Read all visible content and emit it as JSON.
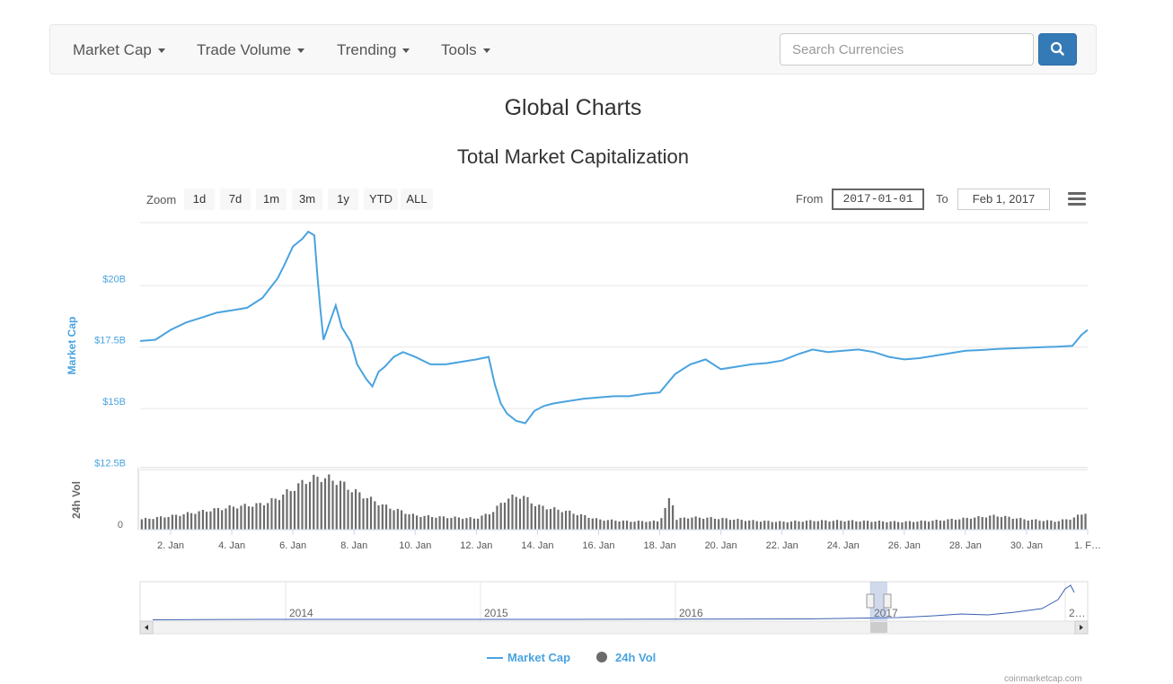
{
  "nav": {
    "items": [
      {
        "label": "Market Cap"
      },
      {
        "label": "Trade Volume"
      },
      {
        "label": "Trending"
      },
      {
        "label": "Tools"
      }
    ],
    "search_placeholder": "Search Currencies"
  },
  "page_title": "Global Charts",
  "range_selector": {
    "zoom_label": "Zoom",
    "buttons": [
      "1d",
      "7d",
      "1m",
      "3m",
      "1y",
      "YTD",
      "ALL"
    ],
    "from_label": "From",
    "from_value": "2017-01-01",
    "to_label": "To",
    "to_value": "Feb 1, 2017"
  },
  "colors": {
    "market_cap": "#4aa3df",
    "volume": "#6b6b6b",
    "navigator_line": "#3a5fb0",
    "search_button": "#337ab7"
  },
  "icons": {
    "search": "search-icon",
    "menu": "hamburger-menu-icon"
  },
  "credits": "coinmarketcap.com",
  "chart_data": {
    "type": "line",
    "title": "Total Market Capitalization",
    "x_range": [
      "2017-01-01",
      "2017-02-01"
    ],
    "x_ticks": [
      "2. Jan",
      "4. Jan",
      "6. Jan",
      "8. Jan",
      "10. Jan",
      "12. Jan",
      "14. Jan",
      "16. Jan",
      "18. Jan",
      "20. Jan",
      "22. Jan",
      "24. Jan",
      "26. Jan",
      "28. Jan",
      "30. Jan",
      "1. F…"
    ],
    "y_axis": {
      "label": "Market Cap",
      "ticks": [
        "$12.5B",
        "$15B",
        "$17.5B",
        "$20B"
      ],
      "tick_values": [
        12.5,
        15,
        17.5,
        20
      ],
      "min": 12.5,
      "max": 22.5,
      "unit": "B USD"
    },
    "volume_axis": {
      "label": "24h Vol",
      "ticks": [
        "0"
      ]
    },
    "series": [
      {
        "name": "Market Cap",
        "points": [
          [
            0,
            17.75
          ],
          [
            0.5,
            17.8
          ],
          [
            1,
            18.2
          ],
          [
            1.5,
            18.5
          ],
          [
            2,
            18.7
          ],
          [
            2.5,
            18.9
          ],
          [
            3,
            19.0
          ],
          [
            3.5,
            19.1
          ],
          [
            4,
            19.5
          ],
          [
            4.5,
            20.3
          ],
          [
            4.7,
            20.8
          ],
          [
            5.0,
            21.6
          ],
          [
            5.3,
            21.9
          ],
          [
            5.5,
            22.2
          ],
          [
            5.7,
            22.05
          ],
          [
            5.8,
            20.4
          ],
          [
            5.9,
            19.0
          ],
          [
            6.0,
            17.8
          ],
          [
            6.2,
            18.5
          ],
          [
            6.4,
            19.2
          ],
          [
            6.6,
            18.3
          ],
          [
            6.9,
            17.7
          ],
          [
            7.1,
            16.8
          ],
          [
            7.4,
            16.2
          ],
          [
            7.6,
            15.9
          ],
          [
            7.8,
            16.5
          ],
          [
            8.0,
            16.7
          ],
          [
            8.3,
            17.1
          ],
          [
            8.6,
            17.3
          ],
          [
            9.0,
            17.1
          ],
          [
            9.5,
            16.8
          ],
          [
            10.0,
            16.8
          ],
          [
            10.5,
            16.9
          ],
          [
            11.0,
            17.0
          ],
          [
            11.4,
            17.1
          ],
          [
            11.6,
            16.0
          ],
          [
            11.8,
            15.2
          ],
          [
            12.0,
            14.8
          ],
          [
            12.3,
            14.5
          ],
          [
            12.6,
            14.4
          ],
          [
            12.9,
            14.9
          ],
          [
            13.2,
            15.1
          ],
          [
            13.5,
            15.2
          ],
          [
            14.0,
            15.3
          ],
          [
            14.5,
            15.4
          ],
          [
            15.0,
            15.45
          ],
          [
            15.5,
            15.5
          ],
          [
            16.0,
            15.5
          ],
          [
            16.5,
            15.6
          ],
          [
            17.0,
            15.65
          ],
          [
            17.5,
            16.4
          ],
          [
            18.0,
            16.8
          ],
          [
            18.5,
            17.0
          ],
          [
            19.0,
            16.6
          ],
          [
            19.5,
            16.7
          ],
          [
            20.0,
            16.8
          ],
          [
            20.5,
            16.85
          ],
          [
            21.0,
            16.95
          ],
          [
            21.5,
            17.2
          ],
          [
            22.0,
            17.4
          ],
          [
            22.5,
            17.3
          ],
          [
            23.0,
            17.35
          ],
          [
            23.5,
            17.4
          ],
          [
            24.0,
            17.3
          ],
          [
            24.5,
            17.1
          ],
          [
            25.0,
            17.0
          ],
          [
            25.5,
            17.05
          ],
          [
            26.0,
            17.15
          ],
          [
            26.5,
            17.25
          ],
          [
            27.0,
            17.35
          ],
          [
            27.5,
            17.38
          ],
          [
            28.0,
            17.42
          ],
          [
            28.5,
            17.45
          ],
          [
            29.0,
            17.47
          ],
          [
            29.5,
            17.5
          ],
          [
            30.0,
            17.52
          ],
          [
            30.5,
            17.55
          ],
          [
            30.8,
            18.0
          ],
          [
            31.0,
            18.2
          ]
        ]
      },
      {
        "name": "24h Vol",
        "relative_levels": [
          [
            0,
            0.18
          ],
          [
            1,
            0.24
          ],
          [
            2,
            0.32
          ],
          [
            3,
            0.4
          ],
          [
            4,
            0.45
          ],
          [
            4.5,
            0.55
          ],
          [
            5,
            0.72
          ],
          [
            5.5,
            0.88
          ],
          [
            6,
            0.92
          ],
          [
            6.5,
            0.85
          ],
          [
            7,
            0.68
          ],
          [
            8,
            0.42
          ],
          [
            9,
            0.25
          ],
          [
            10,
            0.22
          ],
          [
            11,
            0.2
          ],
          [
            11.5,
            0.3
          ],
          [
            12,
            0.55
          ],
          [
            12.5,
            0.6
          ],
          [
            13,
            0.42
          ],
          [
            14,
            0.32
          ],
          [
            15,
            0.18
          ],
          [
            16,
            0.15
          ],
          [
            17,
            0.15
          ],
          [
            17.4,
            0.62
          ],
          [
            17.5,
            0.18
          ],
          [
            18,
            0.22
          ],
          [
            19,
            0.2
          ],
          [
            20,
            0.16
          ],
          [
            21,
            0.14
          ],
          [
            22,
            0.16
          ],
          [
            23,
            0.16
          ],
          [
            24,
            0.15
          ],
          [
            25,
            0.14
          ],
          [
            26,
            0.16
          ],
          [
            27,
            0.2
          ],
          [
            28,
            0.25
          ],
          [
            29,
            0.18
          ],
          [
            30,
            0.15
          ],
          [
            30.5,
            0.2
          ],
          [
            31,
            0.32
          ]
        ]
      }
    ],
    "navigator": {
      "x_ticks": [
        "2014",
        "2015",
        "2016",
        "2017",
        "2…"
      ]
    },
    "legend": {
      "placement": "bottom-center",
      "items": [
        "Market Cap",
        "24h Vol"
      ]
    }
  }
}
